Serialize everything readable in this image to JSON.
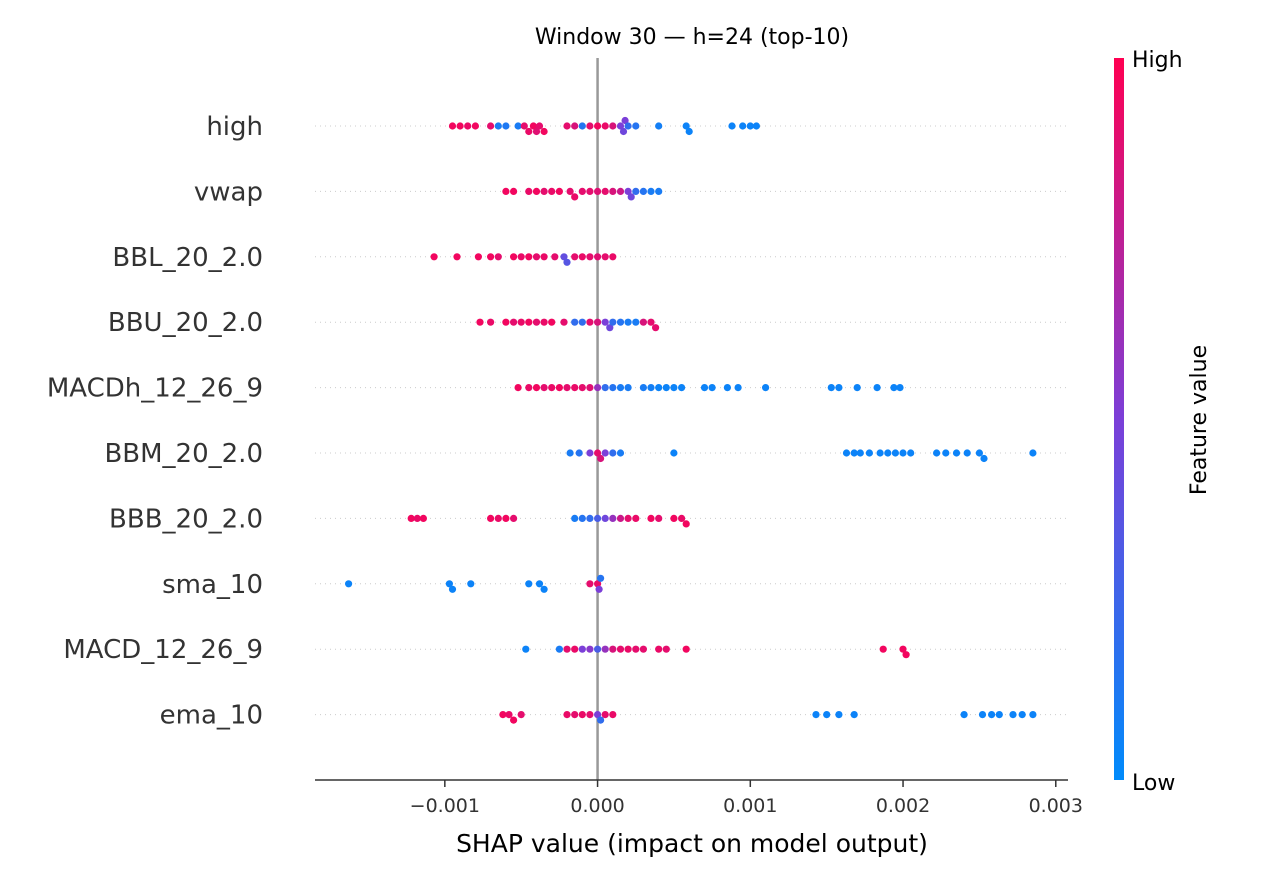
{
  "chart_data": {
    "type": "scatter",
    "subtype": "shap-beeswarm",
    "title": "Window 30 — h=24 (top-10)",
    "xlabel": "SHAP value (impact on model output)",
    "ylabel": "",
    "xlim": [
      -0.00185,
      0.00308
    ],
    "xticks": [
      -0.001,
      0.0,
      0.001,
      0.002,
      0.003
    ],
    "xtick_labels": [
      "−0.001",
      "0.000",
      "0.001",
      "0.002",
      "0.003"
    ],
    "zero_line": 0.0,
    "colorbar": {
      "label": "Feature value",
      "high_label": "High",
      "low_label": "Low",
      "high_color": "#ff0052",
      "mid_color": "#7b3fd8",
      "low_color": "#008bfb"
    },
    "grid": "dotted per-feature rows",
    "features": [
      {
        "name": "high",
        "points": [
          {
            "x": -0.00095,
            "c": 0.95
          },
          {
            "x": -0.0009,
            "c": 0.95
          },
          {
            "x": -0.00085,
            "c": 0.92
          },
          {
            "x": -0.0008,
            "c": 0.95
          },
          {
            "x": -0.0007,
            "c": 0.9
          },
          {
            "x": -0.00065,
            "c": 0.1
          },
          {
            "x": -0.0006,
            "c": 0.12
          },
          {
            "x": -0.00052,
            "c": 0.1
          },
          {
            "x": -0.00048,
            "c": 0.9
          },
          {
            "x": -0.00045,
            "c": 0.92
          },
          {
            "x": -0.00042,
            "c": 0.95
          },
          {
            "x": -0.0004,
            "c": 0.88
          },
          {
            "x": -0.00038,
            "c": 0.9
          },
          {
            "x": -0.00035,
            "c": 0.95
          },
          {
            "x": -0.0002,
            "c": 0.9
          },
          {
            "x": -0.00015,
            "c": 0.85
          },
          {
            "x": -0.0001,
            "c": 0.15
          },
          {
            "x": -5e-05,
            "c": 0.9
          },
          {
            "x": 0.0,
            "c": 0.95
          },
          {
            "x": 5e-05,
            "c": 0.92
          },
          {
            "x": 0.0001,
            "c": 0.85
          },
          {
            "x": 0.00015,
            "c": 0.5
          },
          {
            "x": 0.00017,
            "c": 0.45
          },
          {
            "x": 0.00018,
            "c": 0.5
          },
          {
            "x": 0.0002,
            "c": 0.2
          },
          {
            "x": 0.00025,
            "c": 0.15
          },
          {
            "x": 0.0004,
            "c": 0.08
          },
          {
            "x": 0.00058,
            "c": 0.05
          },
          {
            "x": 0.0006,
            "c": 0.05
          },
          {
            "x": 0.00088,
            "c": 0.05
          },
          {
            "x": 0.00095,
            "c": 0.05
          },
          {
            "x": 0.001,
            "c": 0.05
          },
          {
            "x": 0.00104,
            "c": 0.05
          }
        ]
      },
      {
        "name": "vwap",
        "points": [
          {
            "x": -0.0006,
            "c": 0.95
          },
          {
            "x": -0.00055,
            "c": 0.95
          },
          {
            "x": -0.00045,
            "c": 0.92
          },
          {
            "x": -0.0004,
            "c": 0.95
          },
          {
            "x": -0.00035,
            "c": 0.9
          },
          {
            "x": -0.0003,
            "c": 0.92
          },
          {
            "x": -0.00025,
            "c": 0.95
          },
          {
            "x": -0.00018,
            "c": 0.9
          },
          {
            "x": -0.00015,
            "c": 0.92
          },
          {
            "x": -0.0001,
            "c": 0.9
          },
          {
            "x": -5e-05,
            "c": 0.9
          },
          {
            "x": 0.0,
            "c": 0.88
          },
          {
            "x": 5e-05,
            "c": 0.9
          },
          {
            "x": 0.0001,
            "c": 0.85
          },
          {
            "x": 0.00015,
            "c": 0.8
          },
          {
            "x": 0.0002,
            "c": 0.5
          },
          {
            "x": 0.00022,
            "c": 0.45
          },
          {
            "x": 0.00025,
            "c": 0.2
          },
          {
            "x": 0.0003,
            "c": 0.15
          },
          {
            "x": 0.00035,
            "c": 0.1
          },
          {
            "x": 0.0004,
            "c": 0.1
          }
        ]
      },
      {
        "name": "BBL_20_2.0",
        "points": [
          {
            "x": -0.00107,
            "c": 0.95
          },
          {
            "x": -0.00092,
            "c": 0.95
          },
          {
            "x": -0.00078,
            "c": 0.95
          },
          {
            "x": -0.0007,
            "c": 0.95
          },
          {
            "x": -0.00065,
            "c": 0.9
          },
          {
            "x": -0.00055,
            "c": 0.95
          },
          {
            "x": -0.0005,
            "c": 0.92
          },
          {
            "x": -0.00045,
            "c": 0.95
          },
          {
            "x": -0.0004,
            "c": 0.9
          },
          {
            "x": -0.00035,
            "c": 0.92
          },
          {
            "x": -0.00028,
            "c": 0.9
          },
          {
            "x": -0.00022,
            "c": 0.4
          },
          {
            "x": -0.0002,
            "c": 0.35
          },
          {
            "x": -0.00015,
            "c": 0.9
          },
          {
            "x": -0.0001,
            "c": 0.92
          },
          {
            "x": -5e-05,
            "c": 0.9
          },
          {
            "x": 0.0,
            "c": 0.88
          },
          {
            "x": 5e-05,
            "c": 0.9
          },
          {
            "x": 0.0001,
            "c": 0.92
          }
        ]
      },
      {
        "name": "BBU_20_2.0",
        "points": [
          {
            "x": -0.00077,
            "c": 0.95
          },
          {
            "x": -0.0007,
            "c": 0.92
          },
          {
            "x": -0.0006,
            "c": 0.95
          },
          {
            "x": -0.00055,
            "c": 0.9
          },
          {
            "x": -0.0005,
            "c": 0.92
          },
          {
            "x": -0.00045,
            "c": 0.95
          },
          {
            "x": -0.0004,
            "c": 0.9
          },
          {
            "x": -0.00035,
            "c": 0.92
          },
          {
            "x": -0.0003,
            "c": 0.95
          },
          {
            "x": -0.00022,
            "c": 0.9
          },
          {
            "x": -0.00015,
            "c": 0.2
          },
          {
            "x": -0.0001,
            "c": 0.2
          },
          {
            "x": -5e-05,
            "c": 0.9
          },
          {
            "x": 0.0,
            "c": 0.85
          },
          {
            "x": 5e-05,
            "c": 0.5
          },
          {
            "x": 8e-05,
            "c": 0.45
          },
          {
            "x": 0.0001,
            "c": 0.2
          },
          {
            "x": 0.00015,
            "c": 0.15
          },
          {
            "x": 0.0002,
            "c": 0.1
          },
          {
            "x": 0.00025,
            "c": 0.1
          },
          {
            "x": 0.0003,
            "c": 0.85
          },
          {
            "x": 0.00035,
            "c": 0.9
          },
          {
            "x": 0.00038,
            "c": 0.9
          }
        ]
      },
      {
        "name": "MACDh_12_26_9",
        "points": [
          {
            "x": -0.00052,
            "c": 0.95
          },
          {
            "x": -0.00045,
            "c": 0.92
          },
          {
            "x": -0.0004,
            "c": 0.95
          },
          {
            "x": -0.00035,
            "c": 0.9
          },
          {
            "x": -0.0003,
            "c": 0.92
          },
          {
            "x": -0.00025,
            "c": 0.95
          },
          {
            "x": -0.0002,
            "c": 0.9
          },
          {
            "x": -0.00015,
            "c": 0.92
          },
          {
            "x": -0.0001,
            "c": 0.9
          },
          {
            "x": -5e-05,
            "c": 0.88
          },
          {
            "x": 0.0,
            "c": 0.6
          },
          {
            "x": 5e-05,
            "c": 0.2
          },
          {
            "x": 0.0001,
            "c": 0.15
          },
          {
            "x": 0.00015,
            "c": 0.1
          },
          {
            "x": 0.0002,
            "c": 0.1
          },
          {
            "x": 0.0003,
            "c": 0.1
          },
          {
            "x": 0.00035,
            "c": 0.08
          },
          {
            "x": 0.0004,
            "c": 0.05
          },
          {
            "x": 0.00045,
            "c": 0.05
          },
          {
            "x": 0.0005,
            "c": 0.05
          },
          {
            "x": 0.00055,
            "c": 0.05
          },
          {
            "x": 0.0007,
            "c": 0.05
          },
          {
            "x": 0.00075,
            "c": 0.05
          },
          {
            "x": 0.00085,
            "c": 0.05
          },
          {
            "x": 0.00092,
            "c": 0.05
          },
          {
            "x": 0.0011,
            "c": 0.05
          },
          {
            "x": 0.00153,
            "c": 0.05
          },
          {
            "x": 0.00158,
            "c": 0.05
          },
          {
            "x": 0.0017,
            "c": 0.05
          },
          {
            "x": 0.00183,
            "c": 0.05
          },
          {
            "x": 0.00194,
            "c": 0.05
          },
          {
            "x": 0.00198,
            "c": 0.05
          }
        ]
      },
      {
        "name": "BBM_20_2.0",
        "points": [
          {
            "x": -0.00018,
            "c": 0.1
          },
          {
            "x": -0.00012,
            "c": 0.15
          },
          {
            "x": -5e-05,
            "c": 0.5
          },
          {
            "x": 0.0,
            "c": 0.9
          },
          {
            "x": 2e-05,
            "c": 0.85
          },
          {
            "x": 5e-05,
            "c": 0.5
          },
          {
            "x": 0.0001,
            "c": 0.2
          },
          {
            "x": 0.00015,
            "c": 0.1
          },
          {
            "x": 0.0005,
            "c": 0.05
          },
          {
            "x": 0.00163,
            "c": 0.05
          },
          {
            "x": 0.00168,
            "c": 0.05
          },
          {
            "x": 0.00172,
            "c": 0.05
          },
          {
            "x": 0.00178,
            "c": 0.05
          },
          {
            "x": 0.00185,
            "c": 0.05
          },
          {
            "x": 0.0019,
            "c": 0.05
          },
          {
            "x": 0.00195,
            "c": 0.05
          },
          {
            "x": 0.002,
            "c": 0.05
          },
          {
            "x": 0.00205,
            "c": 0.05
          },
          {
            "x": 0.00222,
            "c": 0.05
          },
          {
            "x": 0.00228,
            "c": 0.05
          },
          {
            "x": 0.00235,
            "c": 0.05
          },
          {
            "x": 0.00242,
            "c": 0.05
          },
          {
            "x": 0.0025,
            "c": 0.05
          },
          {
            "x": 0.00253,
            "c": 0.05
          },
          {
            "x": 0.00285,
            "c": 0.05
          }
        ]
      },
      {
        "name": "BBB_20_2.0",
        "points": [
          {
            "x": -0.00122,
            "c": 0.95
          },
          {
            "x": -0.00118,
            "c": 0.92
          },
          {
            "x": -0.00114,
            "c": 0.95
          },
          {
            "x": -0.0007,
            "c": 0.95
          },
          {
            "x": -0.00065,
            "c": 0.92
          },
          {
            "x": -0.0006,
            "c": 0.95
          },
          {
            "x": -0.00055,
            "c": 0.9
          },
          {
            "x": -0.00015,
            "c": 0.1
          },
          {
            "x": -0.0001,
            "c": 0.15
          },
          {
            "x": -5e-05,
            "c": 0.2
          },
          {
            "x": 0.0,
            "c": 0.3
          },
          {
            "x": 5e-05,
            "c": 0.45
          },
          {
            "x": 0.0001,
            "c": 0.6
          },
          {
            "x": 0.00015,
            "c": 0.8
          },
          {
            "x": 0.0002,
            "c": 0.9
          },
          {
            "x": 0.00025,
            "c": 0.92
          },
          {
            "x": 0.00035,
            "c": 0.95
          },
          {
            "x": 0.0004,
            "c": 0.9
          },
          {
            "x": 0.0005,
            "c": 0.95
          },
          {
            "x": 0.00055,
            "c": 0.92
          },
          {
            "x": 0.00058,
            "c": 0.95
          }
        ]
      },
      {
        "name": "sma_10",
        "points": [
          {
            "x": -0.00163,
            "c": 0.05
          },
          {
            "x": -0.00097,
            "c": 0.05
          },
          {
            "x": -0.00095,
            "c": 0.05
          },
          {
            "x": -0.00083,
            "c": 0.05
          },
          {
            "x": -0.00045,
            "c": 0.05
          },
          {
            "x": -0.00038,
            "c": 0.05
          },
          {
            "x": -0.00035,
            "c": 0.05
          },
          {
            "x": -5e-05,
            "c": 0.9
          },
          {
            "x": 0.0,
            "c": 0.92
          },
          {
            "x": 1e-05,
            "c": 0.5
          },
          {
            "x": 2e-05,
            "c": 0.15
          }
        ]
      },
      {
        "name": "MACD_12_26_9",
        "points": [
          {
            "x": -0.00047,
            "c": 0.05
          },
          {
            "x": -0.00025,
            "c": 0.1
          },
          {
            "x": -0.0002,
            "c": 0.9
          },
          {
            "x": -0.00015,
            "c": 0.92
          },
          {
            "x": -0.0001,
            "c": 0.5
          },
          {
            "x": -5e-05,
            "c": 0.55
          },
          {
            "x": 0.0,
            "c": 0.3
          },
          {
            "x": 5e-05,
            "c": 0.6
          },
          {
            "x": 0.0001,
            "c": 0.85
          },
          {
            "x": 0.00015,
            "c": 0.9
          },
          {
            "x": 0.0002,
            "c": 0.92
          },
          {
            "x": 0.00025,
            "c": 0.9
          },
          {
            "x": 0.0003,
            "c": 0.9
          },
          {
            "x": 0.0004,
            "c": 0.92
          },
          {
            "x": 0.00045,
            "c": 0.9
          },
          {
            "x": 0.00058,
            "c": 0.95
          },
          {
            "x": 0.00187,
            "c": 0.95
          },
          {
            "x": 0.002,
            "c": 0.95
          },
          {
            "x": 0.00202,
            "c": 0.95
          }
        ]
      },
      {
        "name": "ema_10",
        "points": [
          {
            "x": -0.00062,
            "c": 0.95
          },
          {
            "x": -0.00058,
            "c": 0.92
          },
          {
            "x": -0.00055,
            "c": 0.95
          },
          {
            "x": -0.0005,
            "c": 0.9
          },
          {
            "x": -0.0002,
            "c": 0.92
          },
          {
            "x": -0.00015,
            "c": 0.9
          },
          {
            "x": -0.0001,
            "c": 0.92
          },
          {
            "x": -5e-05,
            "c": 0.9
          },
          {
            "x": 0.0,
            "c": 0.5
          },
          {
            "x": 2e-05,
            "c": 0.2
          },
          {
            "x": 5e-05,
            "c": 0.9
          },
          {
            "x": 0.0001,
            "c": 0.92
          },
          {
            "x": 0.00143,
            "c": 0.05
          },
          {
            "x": 0.0015,
            "c": 0.05
          },
          {
            "x": 0.00158,
            "c": 0.05
          },
          {
            "x": 0.00168,
            "c": 0.05
          },
          {
            "x": 0.0024,
            "c": 0.05
          },
          {
            "x": 0.00252,
            "c": 0.05
          },
          {
            "x": 0.00258,
            "c": 0.05
          },
          {
            "x": 0.00263,
            "c": 0.05
          },
          {
            "x": 0.00272,
            "c": 0.05
          },
          {
            "x": 0.00278,
            "c": 0.05
          },
          {
            "x": 0.00285,
            "c": 0.05
          }
        ]
      }
    ]
  }
}
